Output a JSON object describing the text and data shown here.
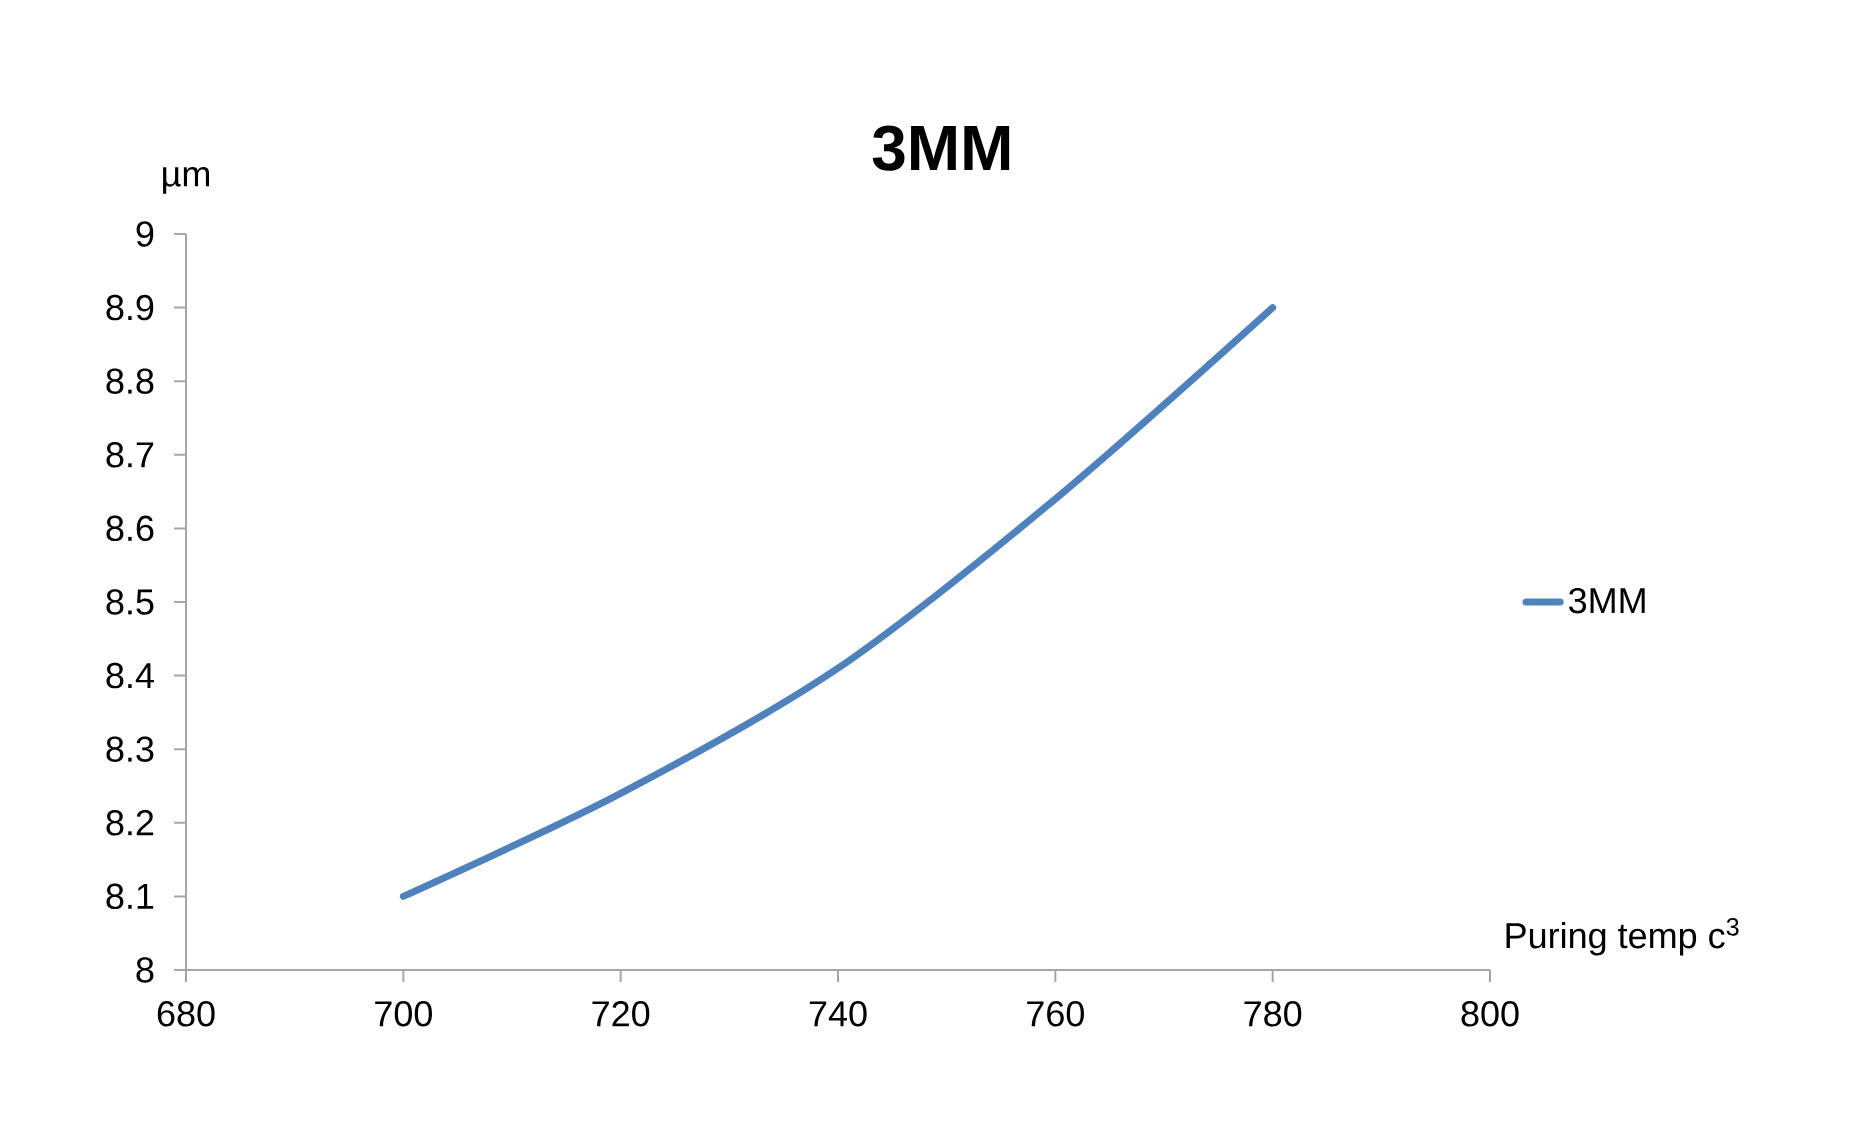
{
  "chart_data": {
    "type": "line",
    "title": "3MM",
    "xlabel": "Puring temp c$^{3}$",
    "ylabel": "µm",
    "x": [
      700,
      720,
      740,
      760,
      780
    ],
    "series": [
      {
        "name": "3MM",
        "color": "#4f81bd",
        "values": [
          8.1,
          8.24,
          8.41,
          8.64,
          8.9
        ]
      }
    ],
    "xlim": [
      680,
      800
    ],
    "xticks": [
      680,
      700,
      720,
      740,
      760,
      780,
      800
    ],
    "ylim": [
      8,
      9
    ],
    "yticks": [
      8,
      8.1,
      8.2,
      8.3,
      8.4,
      8.5,
      8.6,
      8.7,
      8.8,
      8.9,
      9
    ],
    "legend": "right"
  }
}
